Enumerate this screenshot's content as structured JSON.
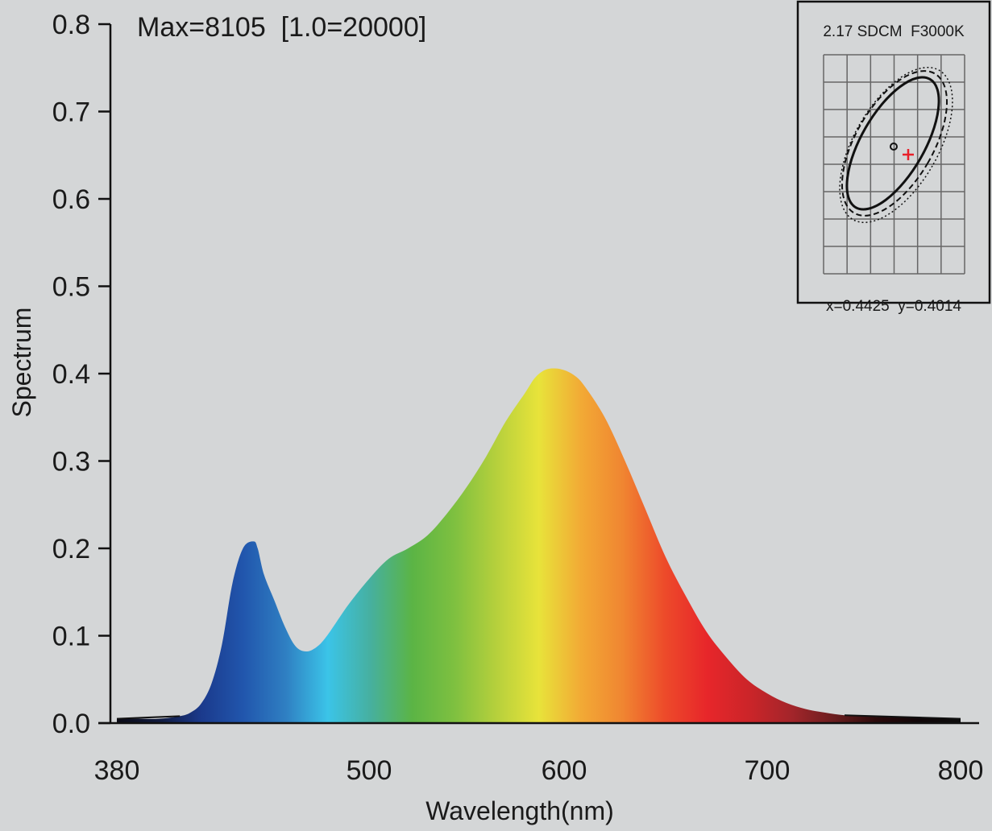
{
  "chart_data": {
    "type": "area",
    "title": "",
    "annotation": "Max=8105  [1.0=20000]",
    "xlabel": "Wavelength(nm)",
    "ylabel": "Spectrum",
    "xlim": [
      380,
      800
    ],
    "ylim": [
      0,
      0.8
    ],
    "x_ticks": [
      "380",
      "500",
      "600",
      "700",
      "800"
    ],
    "x_tick_values": [
      380,
      500,
      600,
      700,
      800
    ],
    "y_ticks": [
      "0.0",
      "0.1",
      "0.2",
      "0.3",
      "0.4",
      "0.5",
      "0.6",
      "0.7",
      "0.8"
    ],
    "y_tick_values": [
      0.0,
      0.1,
      0.2,
      0.3,
      0.4,
      0.5,
      0.6,
      0.7,
      0.8
    ],
    "series": [
      {
        "x": [
          380,
          390,
          400,
          410,
          415,
          420,
          425,
          430,
          435,
          440,
          445,
          447,
          450,
          455,
          460,
          465,
          470,
          475,
          480,
          490,
          500,
          510,
          520,
          530,
          540,
          550,
          560,
          570,
          580,
          585,
          590,
          595,
          600,
          605,
          610,
          620,
          630,
          640,
          650,
          660,
          670,
          680,
          690,
          700,
          710,
          720,
          730,
          740,
          750,
          760,
          780,
          800
        ],
        "y": [
          0.005,
          0.005,
          0.005,
          0.008,
          0.012,
          0.022,
          0.045,
          0.09,
          0.16,
          0.2,
          0.208,
          0.2,
          0.17,
          0.14,
          0.11,
          0.088,
          0.082,
          0.087,
          0.1,
          0.135,
          0.165,
          0.188,
          0.2,
          0.215,
          0.24,
          0.27,
          0.305,
          0.345,
          0.378,
          0.395,
          0.404,
          0.406,
          0.404,
          0.398,
          0.386,
          0.35,
          0.3,
          0.245,
          0.19,
          0.145,
          0.105,
          0.075,
          0.05,
          0.034,
          0.023,
          0.016,
          0.012,
          0.009,
          0.008,
          0.007,
          0.006,
          0.005
        ]
      }
    ],
    "gradient_colors": [
      "#0b0b16",
      "#101a3e",
      "#1b3a8c",
      "#2156ad",
      "#2f7fc2",
      "#3bc4e8",
      "#46b0a0",
      "#5bb445",
      "#7ec040",
      "#b6d03c",
      "#e8e33a",
      "#f2aa35",
      "#f08531",
      "#ed4a2a",
      "#e7262a",
      "#cb2529",
      "#a3252a",
      "#6a1e1f",
      "#2b0a0b",
      "#100608",
      "#0d0d0d"
    ],
    "grid": false,
    "legend": "none"
  },
  "inset": {
    "title": "2.17 SDCM  F3000K",
    "coords": "x=0.4425  y=0.4014",
    "marker_color": "#e8202a"
  }
}
